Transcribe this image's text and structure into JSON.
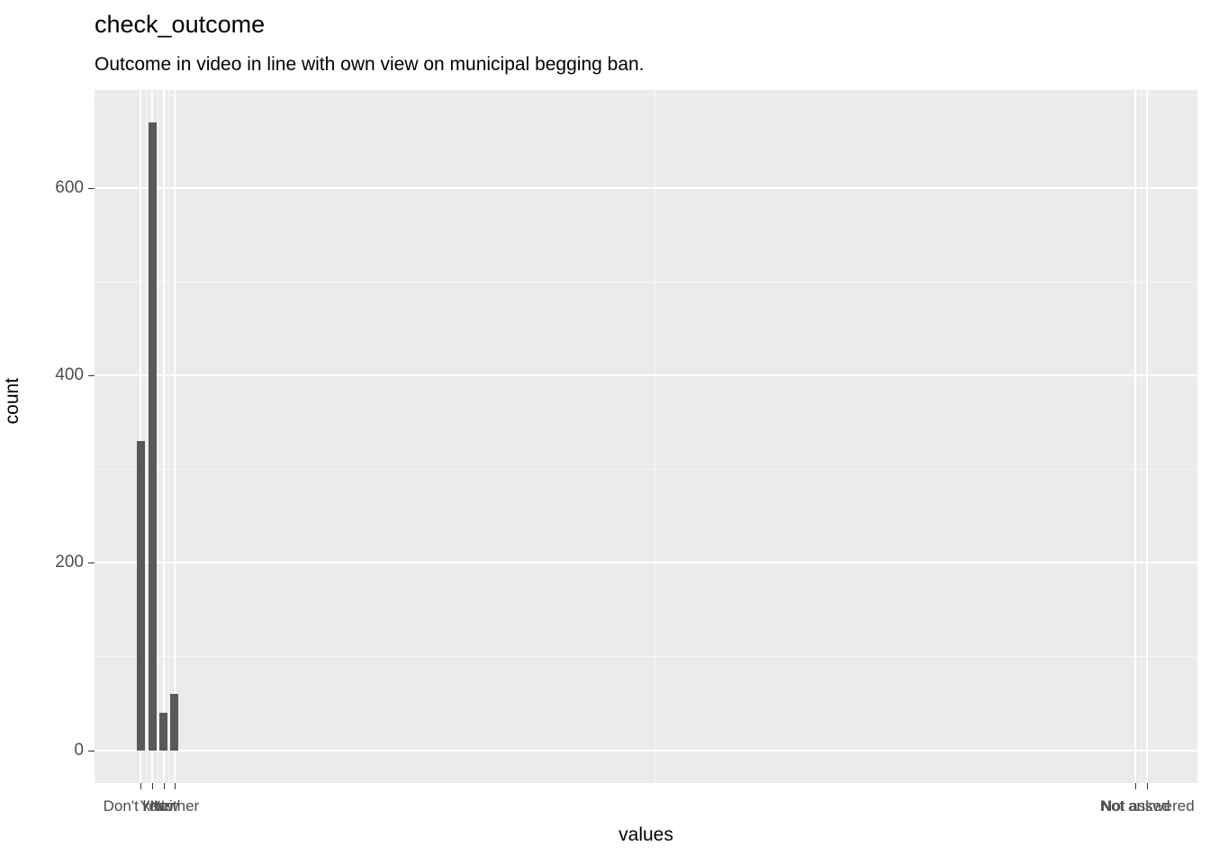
{
  "chart_data": {
    "type": "bar",
    "title": "check_outcome",
    "subtitle": "Outcome in video in line with own view on municipal begging ban.",
    "xlabel": "values",
    "ylabel": "count",
    "y_ticks": [
      0,
      200,
      400,
      600
    ],
    "y_minor": [
      100,
      300,
      500,
      700
    ],
    "ylim": [
      -35,
      705
    ],
    "grid": true,
    "panel_bg": "#ebebeb",
    "bar_color": "#595959",
    "axis_text_color": "#4d4d4d",
    "categories": [
      {
        "label": "Don't know",
        "pos": 0.042,
        "count": 330
      },
      {
        "label": "Yes",
        "pos": 0.0525,
        "count": 670
      },
      {
        "label": "No",
        "pos": 0.0625,
        "count": 40
      },
      {
        "label": "Neither",
        "pos": 0.0725,
        "count": 60
      },
      {
        "label": "Not asked",
        "pos": 0.944,
        "count": 0
      },
      {
        "label": "Not answered",
        "pos": 0.9545,
        "count": 0
      }
    ]
  }
}
